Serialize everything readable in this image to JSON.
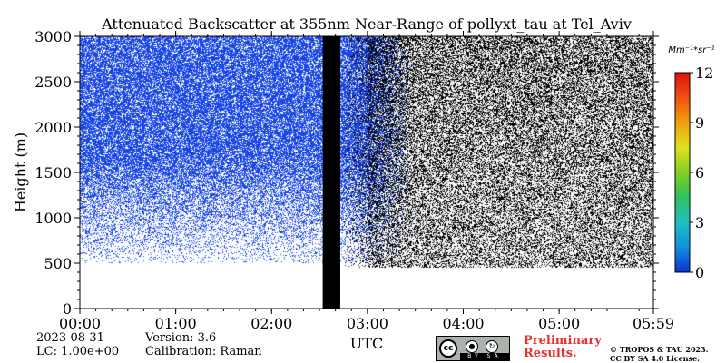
{
  "chart_data": {
    "type": "heatmap",
    "title": "Attenuated Backscatter at 355nm Near-Range of pollyxt_tau at Tel_Aviv",
    "xlabel": "UTC",
    "ylabel": "Height (m)",
    "x_ticks": [
      "00:00",
      "01:00",
      "02:00",
      "03:00",
      "04:00",
      "05:00",
      "05:59"
    ],
    "y_ticks": [
      "0",
      "500",
      "1000",
      "1500",
      "2000",
      "2500",
      "3000"
    ],
    "xlim": [
      "00:00",
      "05:59"
    ],
    "ylim": [
      0,
      3000
    ],
    "colorbar": {
      "unit": "Mm⁻¹*sr⁻¹",
      "ticks": [
        "0",
        "3",
        "6",
        "9",
        "12"
      ],
      "range": [
        0,
        12
      ],
      "colors": [
        "#1030d0",
        "#1090e0",
        "#20c0c0",
        "#30c060",
        "#80d020",
        "#e0e020",
        "#f0a010",
        "#f05010",
        "#e01010"
      ]
    },
    "features": {
      "missing_data_gap": {
        "start": "02:32",
        "end": "02:43",
        "color": "#000000"
      },
      "valid_signal_region_end": "03:00",
      "noise_region_start": "03:00",
      "signal_floor_height_m": 600,
      "signal_color": "#1846e6",
      "noise_color": "#000000"
    }
  },
  "meta": {
    "date": "2023-08-31",
    "lc": "LC: 1.00e+00",
    "version": "Version: 3.6",
    "calibration": "Calibration: Raman"
  },
  "license": {
    "preliminary": "Preliminary Results.",
    "preliminary_line1": "Preliminary",
    "preliminary_line2": "Results.",
    "copyright_line1": "© TROPOS & TAU 2023.",
    "copyright_line2": "CC BY SA 4.0 License.",
    "cc_badge": {
      "cc": "cc",
      "by": "BY",
      "sa": "SA"
    }
  }
}
